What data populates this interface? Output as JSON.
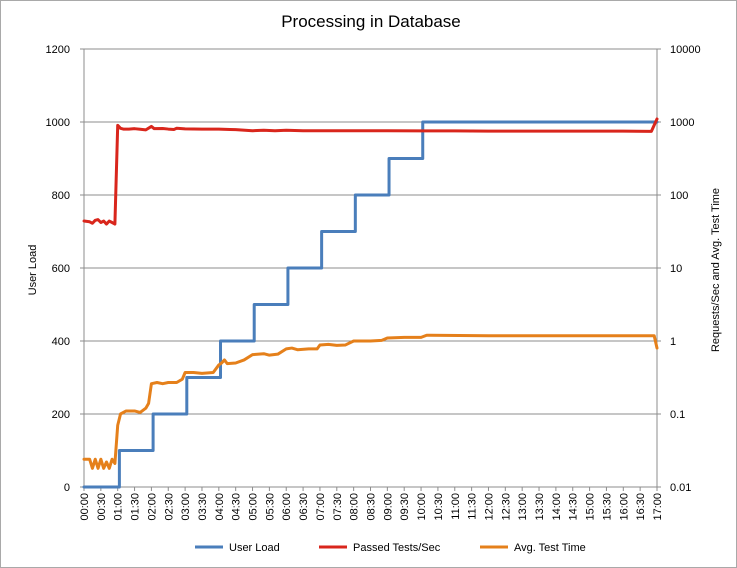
{
  "chart_data": {
    "type": "line",
    "title": "Processing in Database",
    "xlabel": "",
    "ylabel": "User Load",
    "y2label": "Requests/Sec and Avg. Test Time",
    "x_ticks": [
      "00:00",
      "00:30",
      "01:00",
      "01:30",
      "02:00",
      "02:30",
      "03:00",
      "03:30",
      "04:00",
      "04:30",
      "05:00",
      "05:30",
      "06:00",
      "06:30",
      "07:00",
      "07:30",
      "08:00",
      "08:30",
      "09:00",
      "09:30",
      "10:00",
      "10:30",
      "11:00",
      "11:30",
      "12:00",
      "12:30",
      "13:00",
      "13:30",
      "14:00",
      "14:30",
      "15:00",
      "15:30",
      "16:00",
      "16:30",
      "17:00"
    ],
    "ylim": [
      0,
      1200
    ],
    "y_ticks": [
      "0",
      "200",
      "400",
      "600",
      "800",
      "1000",
      "1200"
    ],
    "y2_scale": "log",
    "y2lim": [
      0.01,
      10000
    ],
    "y2_ticks": [
      "0.01",
      "0.1",
      "1",
      "10",
      "100",
      "1000",
      "10000"
    ],
    "grid": "horizontal major gridlines",
    "legend_position": "bottom",
    "series": [
      {
        "name": "User Load",
        "axis": "left",
        "color": "#4a7ebb",
        "points": [
          [
            "00:00",
            0
          ],
          [
            "01:03",
            0
          ],
          [
            "01:03",
            100
          ],
          [
            "02:03",
            100
          ],
          [
            "02:03",
            200
          ],
          [
            "03:03",
            200
          ],
          [
            "03:03",
            300
          ],
          [
            "04:03",
            300
          ],
          [
            "04:03",
            400
          ],
          [
            "05:03",
            400
          ],
          [
            "05:03",
            500
          ],
          [
            "06:03",
            500
          ],
          [
            "06:03",
            600
          ],
          [
            "07:03",
            600
          ],
          [
            "07:03",
            700
          ],
          [
            "08:03",
            700
          ],
          [
            "08:03",
            800
          ],
          [
            "09:03",
            800
          ],
          [
            "09:03",
            900
          ],
          [
            "10:03",
            900
          ],
          [
            "10:03",
            1000
          ],
          [
            "17:00",
            1000
          ]
        ]
      },
      {
        "name": "Passed Tests/Sec",
        "axis": "right",
        "color": "#d9261c",
        "points": [
          [
            "00:00",
            44
          ],
          [
            "00:10",
            43
          ],
          [
            "00:15",
            41
          ],
          [
            "00:20",
            45
          ],
          [
            "00:25",
            46
          ],
          [
            "00:30",
            42
          ],
          [
            "00:35",
            44
          ],
          [
            "00:40",
            40
          ],
          [
            "00:45",
            44
          ],
          [
            "00:50",
            42
          ],
          [
            "00:55",
            40
          ],
          [
            "01:00",
            900
          ],
          [
            "01:05",
            820
          ],
          [
            "01:10",
            800
          ],
          [
            "01:20",
            800
          ],
          [
            "01:30",
            810
          ],
          [
            "01:40",
            795
          ],
          [
            "01:50",
            780
          ],
          [
            "02:00",
            870
          ],
          [
            "02:05",
            810
          ],
          [
            "02:20",
            815
          ],
          [
            "02:30",
            800
          ],
          [
            "02:40",
            790
          ],
          [
            "02:45",
            820
          ],
          [
            "03:00",
            805
          ],
          [
            "03:30",
            800
          ],
          [
            "04:00",
            800
          ],
          [
            "04:20",
            790
          ],
          [
            "04:30",
            785
          ],
          [
            "05:00",
            760
          ],
          [
            "05:20",
            770
          ],
          [
            "05:40",
            760
          ],
          [
            "06:00",
            770
          ],
          [
            "06:30",
            760
          ],
          [
            "07:00",
            760
          ],
          [
            "08:00",
            760
          ],
          [
            "09:00",
            760
          ],
          [
            "10:00",
            755
          ],
          [
            "11:00",
            755
          ],
          [
            "12:00",
            750
          ],
          [
            "13:00",
            750
          ],
          [
            "14:00",
            750
          ],
          [
            "15:00",
            750
          ],
          [
            "16:00",
            750
          ],
          [
            "16:50",
            745
          ],
          [
            "17:00",
            1100
          ]
        ]
      },
      {
        "name": "Avg. Test Time",
        "axis": "right",
        "color": "#e5801b",
        "points": [
          [
            "00:00",
            0.024
          ],
          [
            "00:10",
            0.024
          ],
          [
            "00:15",
            0.018
          ],
          [
            "00:20",
            0.024
          ],
          [
            "00:25",
            0.018
          ],
          [
            "00:30",
            0.024
          ],
          [
            "00:35",
            0.018
          ],
          [
            "00:40",
            0.022
          ],
          [
            "00:45",
            0.018
          ],
          [
            "00:50",
            0.024
          ],
          [
            "00:55",
            0.021
          ],
          [
            "01:00",
            0.07
          ],
          [
            "01:05",
            0.1
          ],
          [
            "01:15",
            0.11
          ],
          [
            "01:30",
            0.11
          ],
          [
            "01:40",
            0.105
          ],
          [
            "01:50",
            0.12
          ],
          [
            "01:55",
            0.14
          ],
          [
            "02:00",
            0.26
          ],
          [
            "02:10",
            0.27
          ],
          [
            "02:20",
            0.26
          ],
          [
            "02:30",
            0.27
          ],
          [
            "02:45",
            0.27
          ],
          [
            "02:55",
            0.3
          ],
          [
            "03:00",
            0.37
          ],
          [
            "03:15",
            0.37
          ],
          [
            "03:30",
            0.36
          ],
          [
            "03:50",
            0.37
          ],
          [
            "04:00",
            0.47
          ],
          [
            "04:05",
            0.5
          ],
          [
            "04:10",
            0.55
          ],
          [
            "04:15",
            0.49
          ],
          [
            "04:30",
            0.5
          ],
          [
            "04:45",
            0.55
          ],
          [
            "05:00",
            0.65
          ],
          [
            "05:20",
            0.67
          ],
          [
            "05:30",
            0.64
          ],
          [
            "05:45",
            0.66
          ],
          [
            "06:00",
            0.78
          ],
          [
            "06:10",
            0.8
          ],
          [
            "06:20",
            0.76
          ],
          [
            "06:40",
            0.78
          ],
          [
            "06:55",
            0.78
          ],
          [
            "07:00",
            0.88
          ],
          [
            "07:15",
            0.9
          ],
          [
            "07:30",
            0.87
          ],
          [
            "07:45",
            0.88
          ],
          [
            "08:00",
            1.0
          ],
          [
            "08:30",
            1.0
          ],
          [
            "08:50",
            1.02
          ],
          [
            "09:00",
            1.1
          ],
          [
            "09:30",
            1.12
          ],
          [
            "10:00",
            1.12
          ],
          [
            "10:10",
            1.2
          ],
          [
            "10:15",
            1.2
          ],
          [
            "12:00",
            1.18
          ],
          [
            "14:00",
            1.18
          ],
          [
            "16:00",
            1.18
          ],
          [
            "16:55",
            1.18
          ],
          [
            "17:00",
            0.8
          ]
        ]
      }
    ]
  }
}
